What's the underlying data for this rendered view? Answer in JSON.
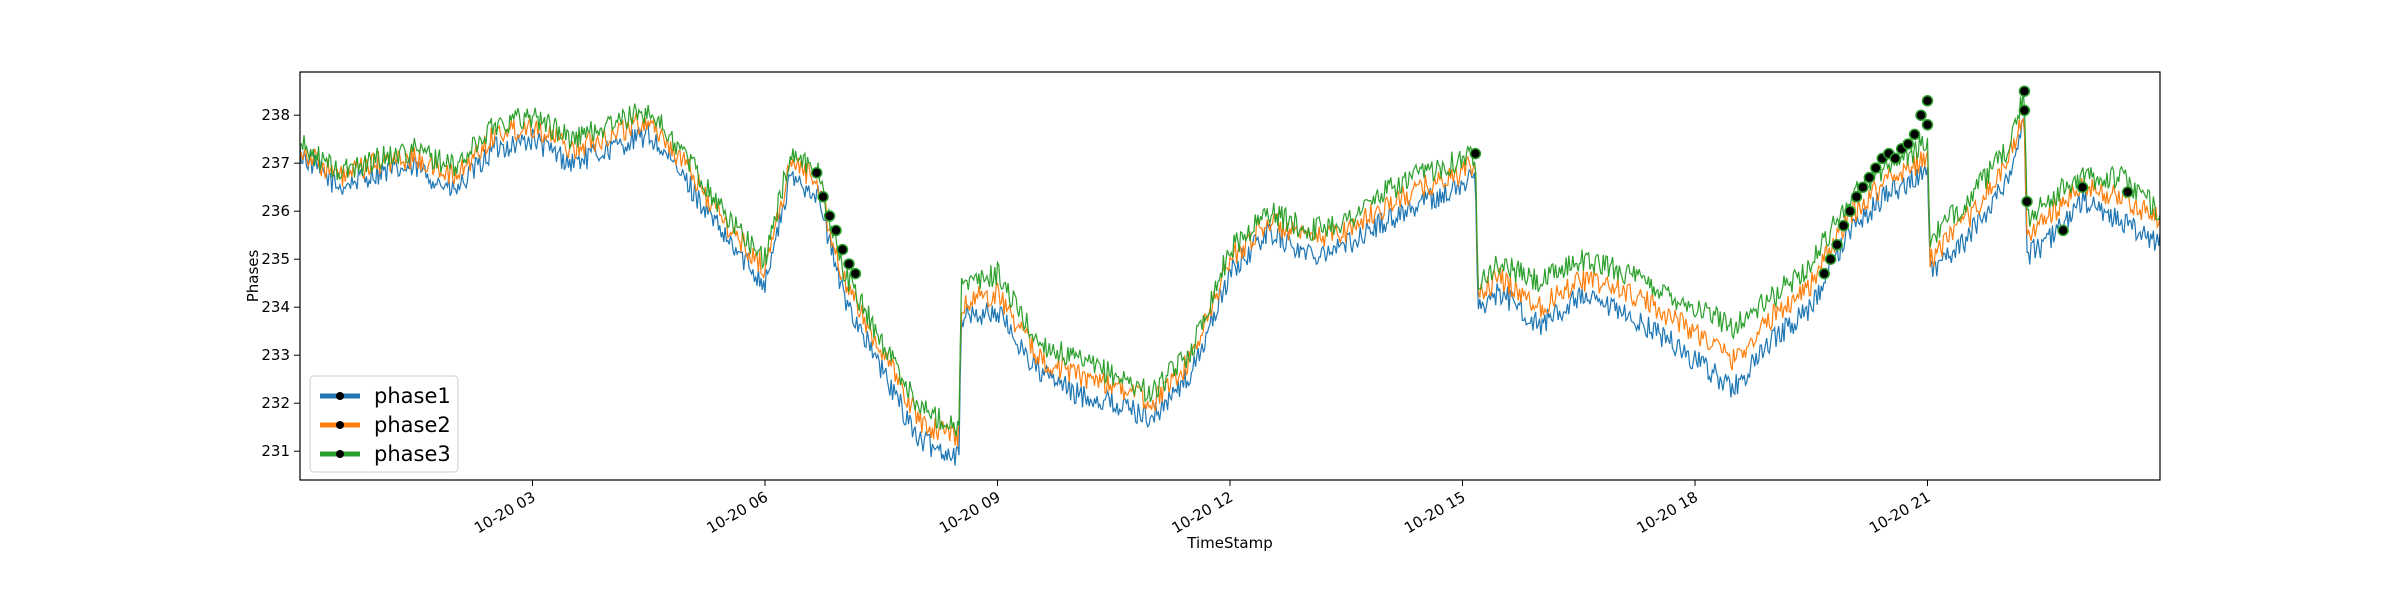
{
  "chart_data": {
    "type": "line",
    "title": "",
    "xlabel": "TimeStamp",
    "ylabel": "Phases",
    "xlim": [
      "2024-10-20 00:00",
      "2024-10-21 00:00"
    ],
    "ylim": [
      230.4,
      238.9
    ],
    "x_ticks": [
      {
        "value": "2024-10-20 03:00",
        "label": "10-20 03"
      },
      {
        "value": "2024-10-20 06:00",
        "label": "10-20 06"
      },
      {
        "value": "2024-10-20 09:00",
        "label": "10-20 09"
      },
      {
        "value": "2024-10-20 12:00",
        "label": "10-20 12"
      },
      {
        "value": "2024-10-20 15:00",
        "label": "10-20 15"
      },
      {
        "value": "2024-10-20 18:00",
        "label": "10-20 18"
      },
      {
        "value": "2024-10-20 21:00",
        "label": "10-20 21"
      }
    ],
    "y_ticks": [
      231,
      232,
      233,
      234,
      235,
      236,
      237,
      238
    ],
    "grid": false,
    "legend_position": "lower-left",
    "series": [
      {
        "name": "phase1",
        "color": "#1f77b4",
        "x": [
          "2024-10-20 00:00",
          "2024-10-20 00:30",
          "2024-10-20 01:00",
          "2024-10-20 01:30",
          "2024-10-20 02:00",
          "2024-10-20 02:30",
          "2024-10-20 03:00",
          "2024-10-20 03:30",
          "2024-10-20 04:00",
          "2024-10-20 04:30",
          "2024-10-20 05:00",
          "2024-10-20 05:30",
          "2024-10-20 06:00",
          "2024-10-20 06:20",
          "2024-10-20 06:40",
          "2024-10-20 07:00",
          "2024-10-20 07:30",
          "2024-10-20 08:00",
          "2024-10-20 08:30",
          "2024-10-20 08:32",
          "2024-10-20 09:00",
          "2024-10-20 09:30",
          "2024-10-20 10:00",
          "2024-10-20 10:30",
          "2024-10-20 11:00",
          "2024-10-20 11:30",
          "2024-10-20 12:00",
          "2024-10-20 12:30",
          "2024-10-20 13:00",
          "2024-10-20 13:30",
          "2024-10-20 14:00",
          "2024-10-20 14:30",
          "2024-10-20 15:00",
          "2024-10-20 15:10",
          "2024-10-20 15:12",
          "2024-10-20 15:30",
          "2024-10-20 16:00",
          "2024-10-20 16:30",
          "2024-10-20 17:00",
          "2024-10-20 17:30",
          "2024-10-20 18:00",
          "2024-10-20 18:30",
          "2024-10-20 19:00",
          "2024-10-20 19:30",
          "2024-10-20 20:00",
          "2024-10-20 20:30",
          "2024-10-20 21:00",
          "2024-10-20 21:02",
          "2024-10-20 21:30",
          "2024-10-20 22:00",
          "2024-10-20 22:15",
          "2024-10-20 22:17",
          "2024-10-20 22:30",
          "2024-10-20 23:00",
          "2024-10-20 23:30",
          "2024-10-21 00:00"
        ],
        "values": [
          237.2,
          236.5,
          236.8,
          236.9,
          236.4,
          237.3,
          237.5,
          237.0,
          237.3,
          237.6,
          236.6,
          235.4,
          234.5,
          236.7,
          236.4,
          234.3,
          232.7,
          231.2,
          230.9,
          233.8,
          233.9,
          232.7,
          232.2,
          232.0,
          231.7,
          232.6,
          234.7,
          235.6,
          235.1,
          235.3,
          235.8,
          236.2,
          236.5,
          236.8,
          234.0,
          234.3,
          233.6,
          234.2,
          233.9,
          233.5,
          232.9,
          232.3,
          233.3,
          234.0,
          235.6,
          236.4,
          236.8,
          234.7,
          235.4,
          236.6,
          237.8,
          235.1,
          235.3,
          236.2,
          235.8,
          235.3
        ]
      },
      {
        "name": "phase2",
        "color": "#ff7f0e",
        "x": [
          "2024-10-20 00:00",
          "2024-10-20 00:30",
          "2024-10-20 01:00",
          "2024-10-20 01:30",
          "2024-10-20 02:00",
          "2024-10-20 02:30",
          "2024-10-20 03:00",
          "2024-10-20 03:30",
          "2024-10-20 04:00",
          "2024-10-20 04:30",
          "2024-10-20 05:00",
          "2024-10-20 05:30",
          "2024-10-20 06:00",
          "2024-10-20 06:20",
          "2024-10-20 06:40",
          "2024-10-20 07:00",
          "2024-10-20 07:30",
          "2024-10-20 08:00",
          "2024-10-20 08:30",
          "2024-10-20 08:32",
          "2024-10-20 09:00",
          "2024-10-20 09:30",
          "2024-10-20 10:00",
          "2024-10-20 10:30",
          "2024-10-20 11:00",
          "2024-10-20 11:30",
          "2024-10-20 12:00",
          "2024-10-20 12:30",
          "2024-10-20 13:00",
          "2024-10-20 13:30",
          "2024-10-20 14:00",
          "2024-10-20 14:30",
          "2024-10-20 15:00",
          "2024-10-20 15:10",
          "2024-10-20 15:12",
          "2024-10-20 15:30",
          "2024-10-20 16:00",
          "2024-10-20 16:30",
          "2024-10-20 17:00",
          "2024-10-20 17:30",
          "2024-10-20 18:00",
          "2024-10-20 18:30",
          "2024-10-20 19:00",
          "2024-10-20 19:30",
          "2024-10-20 20:00",
          "2024-10-20 20:30",
          "2024-10-20 21:00",
          "2024-10-20 21:02",
          "2024-10-20 21:30",
          "2024-10-20 22:00",
          "2024-10-20 22:15",
          "2024-10-20 22:17",
          "2024-10-20 22:30",
          "2024-10-20 23:00",
          "2024-10-20 23:30",
          "2024-10-21 00:00"
        ],
        "values": [
          237.3,
          236.7,
          237.0,
          237.1,
          236.7,
          237.6,
          237.8,
          237.3,
          237.6,
          237.9,
          236.9,
          235.7,
          234.8,
          237.0,
          236.7,
          234.6,
          233.1,
          231.6,
          231.3,
          234.1,
          234.3,
          233.0,
          232.6,
          232.4,
          232.0,
          232.9,
          235.0,
          235.8,
          235.4,
          235.6,
          236.1,
          236.5,
          236.8,
          237.0,
          234.3,
          234.6,
          234.0,
          234.6,
          234.4,
          234.0,
          233.5,
          232.9,
          233.8,
          234.5,
          235.9,
          236.7,
          237.1,
          235.0,
          235.8,
          236.9,
          238.0,
          235.4,
          235.8,
          236.5,
          236.3,
          235.8
        ]
      },
      {
        "name": "phase3",
        "color": "#2ca02c",
        "x": [
          "2024-10-20 00:00",
          "2024-10-20 00:30",
          "2024-10-20 01:00",
          "2024-10-20 01:30",
          "2024-10-20 02:00",
          "2024-10-20 02:30",
          "2024-10-20 03:00",
          "2024-10-20 03:30",
          "2024-10-20 04:00",
          "2024-10-20 04:30",
          "2024-10-20 05:00",
          "2024-10-20 05:30",
          "2024-10-20 06:00",
          "2024-10-20 06:20",
          "2024-10-20 06:40",
          "2024-10-20 07:00",
          "2024-10-20 07:30",
          "2024-10-20 08:00",
          "2024-10-20 08:30",
          "2024-10-20 08:32",
          "2024-10-20 09:00",
          "2024-10-20 09:30",
          "2024-10-20 10:00",
          "2024-10-20 10:30",
          "2024-10-20 11:00",
          "2024-10-20 11:30",
          "2024-10-20 12:00",
          "2024-10-20 12:30",
          "2024-10-20 13:00",
          "2024-10-20 13:30",
          "2024-10-20 14:00",
          "2024-10-20 14:30",
          "2024-10-20 15:00",
          "2024-10-20 15:10",
          "2024-10-20 15:12",
          "2024-10-20 15:30",
          "2024-10-20 16:00",
          "2024-10-20 16:30",
          "2024-10-20 17:00",
          "2024-10-20 17:30",
          "2024-10-20 18:00",
          "2024-10-20 18:30",
          "2024-10-20 19:00",
          "2024-10-20 19:30",
          "2024-10-20 20:00",
          "2024-10-20 20:30",
          "2024-10-20 21:00",
          "2024-10-20 21:02",
          "2024-10-20 21:30",
          "2024-10-20 22:00",
          "2024-10-20 22:15",
          "2024-10-20 22:17",
          "2024-10-20 22:30",
          "2024-10-20 23:00",
          "2024-10-20 23:30",
          "2024-10-21 00:00"
        ],
        "values": [
          237.4,
          236.8,
          237.1,
          237.3,
          236.9,
          237.8,
          238.0,
          237.5,
          237.8,
          238.1,
          237.1,
          235.9,
          235.0,
          237.2,
          236.9,
          234.8,
          233.3,
          231.9,
          231.5,
          234.4,
          234.7,
          233.3,
          232.9,
          232.6,
          232.2,
          233.1,
          235.2,
          236.0,
          235.6,
          235.8,
          236.4,
          236.8,
          237.1,
          237.2,
          234.6,
          234.9,
          234.5,
          235.0,
          234.8,
          234.4,
          234.0,
          233.6,
          234.2,
          234.9,
          236.3,
          237.0,
          237.4,
          235.4,
          236.2,
          237.2,
          238.4,
          235.8,
          236.2,
          236.7,
          236.7,
          236.0
        ]
      }
    ],
    "markers": {
      "color": "#000000",
      "x": [
        "2024-10-20 06:40",
        "2024-10-20 06:45",
        "2024-10-20 06:50",
        "2024-10-20 06:55",
        "2024-10-20 07:00",
        "2024-10-20 07:05",
        "2024-10-20 07:10",
        "2024-10-20 15:10",
        "2024-10-20 19:40",
        "2024-10-20 19:45",
        "2024-10-20 19:50",
        "2024-10-20 19:55",
        "2024-10-20 20:00",
        "2024-10-20 20:05",
        "2024-10-20 20:10",
        "2024-10-20 20:15",
        "2024-10-20 20:20",
        "2024-10-20 20:25",
        "2024-10-20 20:30",
        "2024-10-20 20:35",
        "2024-10-20 20:40",
        "2024-10-20 20:45",
        "2024-10-20 20:50",
        "2024-10-20 20:55",
        "2024-10-20 21:00",
        "2024-10-20 21:00",
        "2024-10-20 22:15",
        "2024-10-20 22:15",
        "2024-10-20 22:17",
        "2024-10-20 22:45",
        "2024-10-20 23:00",
        "2024-10-20 23:35"
      ],
      "y": [
        236.8,
        236.3,
        235.9,
        235.6,
        235.2,
        234.9,
        234.7,
        237.2,
        234.7,
        235.0,
        235.3,
        235.7,
        236.0,
        236.3,
        236.5,
        236.7,
        236.9,
        237.1,
        237.2,
        237.1,
        237.3,
        237.4,
        237.6,
        238.0,
        238.3,
        237.8,
        238.5,
        238.1,
        236.2,
        235.6,
        236.5,
        236.4
      ]
    }
  }
}
